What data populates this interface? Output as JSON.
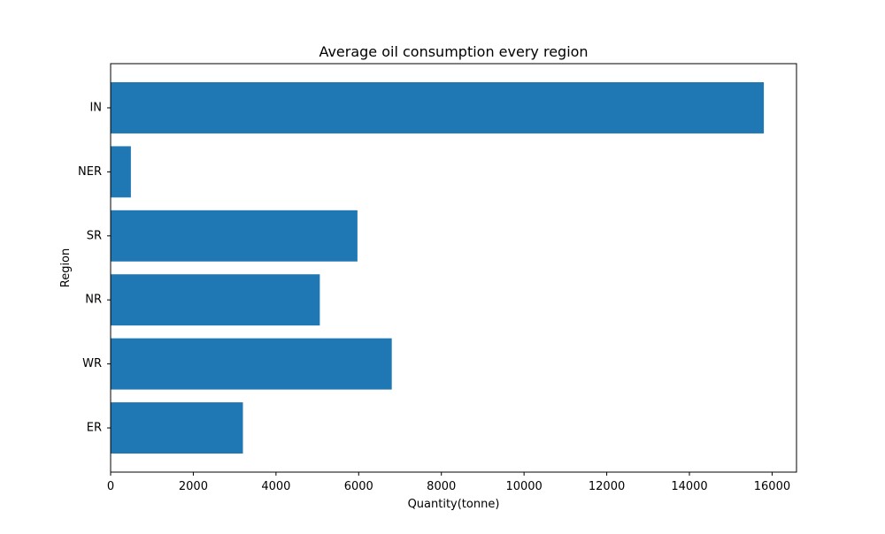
{
  "chart_data": {
    "type": "bar",
    "orientation": "horizontal",
    "title": "Average oil consumption every region",
    "xlabel": "Quantity(tonne)",
    "ylabel": "Region",
    "categories": [
      "ER",
      "WR",
      "NR",
      "SR",
      "NER",
      "IN"
    ],
    "values": [
      3200,
      6800,
      5060,
      5970,
      490,
      15800
    ],
    "xlim": [
      0,
      16590
    ],
    "xticks": [
      0,
      2000,
      4000,
      6000,
      8000,
      10000,
      12000,
      14000,
      16000
    ],
    "grid": false,
    "colors": {
      "bar": "#1f77b4",
      "axis": "#000000",
      "background": "#ffffff"
    }
  }
}
